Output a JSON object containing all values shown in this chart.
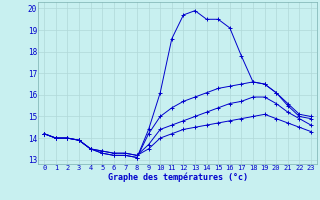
{
  "title": "Graphe des températures (°c)",
  "bg_color": "#c8f0f0",
  "grid_color": "#b0d8d8",
  "line_color": "#0000cc",
  "xlim": [
    -0.5,
    23.5
  ],
  "ylim": [
    12.8,
    20.3
  ],
  "yticks": [
    13,
    14,
    15,
    16,
    17,
    18,
    19,
    20
  ],
  "xticks": [
    0,
    1,
    2,
    3,
    4,
    5,
    6,
    7,
    8,
    9,
    10,
    11,
    12,
    13,
    14,
    15,
    16,
    17,
    18,
    19,
    20,
    21,
    22,
    23
  ],
  "line1_x": [
    0,
    1,
    2,
    3,
    4,
    5,
    6,
    7,
    8,
    9,
    10,
    11,
    12,
    13,
    14,
    15,
    16,
    17,
    18,
    19,
    20,
    21,
    22,
    23
  ],
  "line1_y": [
    14.2,
    14.0,
    14.0,
    13.9,
    13.5,
    13.3,
    13.2,
    13.2,
    13.1,
    14.4,
    16.1,
    18.6,
    19.7,
    19.9,
    19.5,
    19.5,
    19.1,
    17.8,
    16.6,
    16.5,
    16.1,
    15.5,
    15.0,
    14.9
  ],
  "line2_x": [
    0,
    1,
    2,
    3,
    4,
    5,
    6,
    7,
    8,
    9,
    10,
    11,
    12,
    13,
    14,
    15,
    16,
    17,
    18,
    19,
    20,
    21,
    22,
    23
  ],
  "line2_y": [
    14.2,
    14.0,
    14.0,
    13.9,
    13.5,
    13.3,
    13.2,
    13.2,
    13.1,
    14.2,
    15.0,
    15.4,
    15.7,
    15.9,
    16.1,
    16.3,
    16.4,
    16.5,
    16.6,
    16.5,
    16.1,
    15.6,
    15.1,
    15.0
  ],
  "line3_x": [
    0,
    1,
    2,
    3,
    4,
    5,
    6,
    7,
    8,
    9,
    10,
    11,
    12,
    13,
    14,
    15,
    16,
    17,
    18,
    19,
    20,
    21,
    22,
    23
  ],
  "line3_y": [
    14.2,
    14.0,
    14.0,
    13.9,
    13.5,
    13.4,
    13.3,
    13.3,
    13.2,
    13.7,
    14.4,
    14.6,
    14.8,
    15.0,
    15.2,
    15.4,
    15.6,
    15.7,
    15.9,
    15.9,
    15.6,
    15.2,
    14.9,
    14.6
  ],
  "line4_x": [
    0,
    1,
    2,
    3,
    4,
    5,
    6,
    7,
    8,
    9,
    10,
    11,
    12,
    13,
    14,
    15,
    16,
    17,
    18,
    19,
    20,
    21,
    22,
    23
  ],
  "line4_y": [
    14.2,
    14.0,
    14.0,
    13.9,
    13.5,
    13.4,
    13.3,
    13.3,
    13.2,
    13.5,
    14.0,
    14.2,
    14.4,
    14.5,
    14.6,
    14.7,
    14.8,
    14.9,
    15.0,
    15.1,
    14.9,
    14.7,
    14.5,
    14.3
  ]
}
